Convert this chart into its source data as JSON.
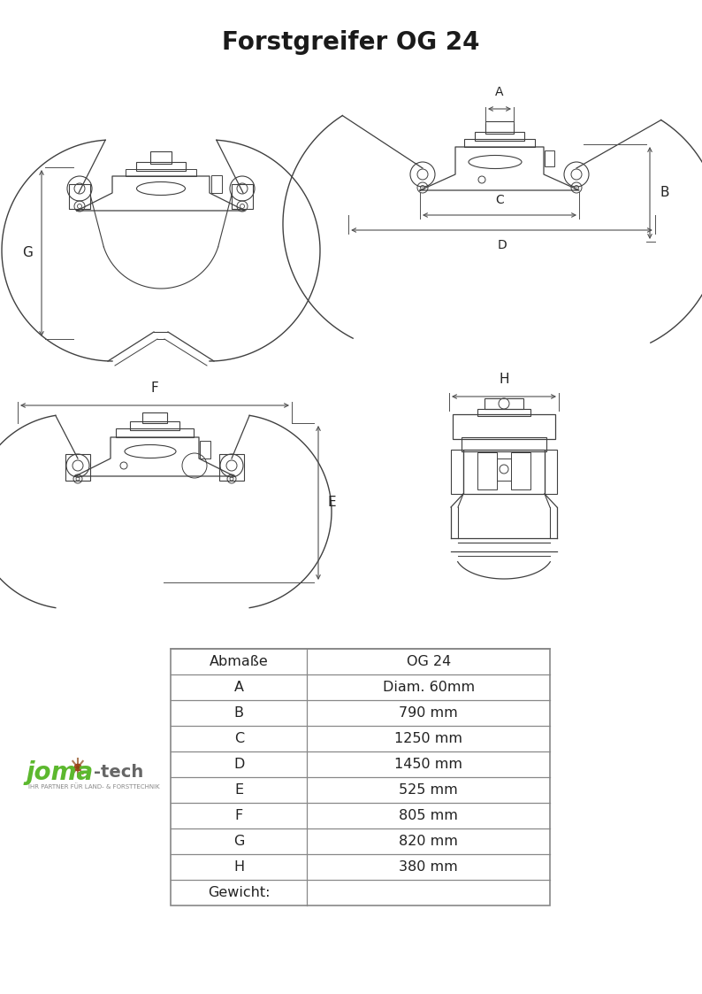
{
  "title": "Forstgreifer OG 24",
  "title_fontsize": 20,
  "title_fontweight": "bold",
  "table_headers": [
    "Abmaße",
    "OG 24"
  ],
  "table_rows": [
    [
      "A",
      "Diam. 60mm"
    ],
    [
      "B",
      "790 mm"
    ],
    [
      "C",
      "1250 mm"
    ],
    [
      "D",
      "1450 mm"
    ],
    [
      "E",
      "525 mm"
    ],
    [
      "F",
      "805 mm"
    ],
    [
      "G",
      "820 mm"
    ],
    [
      "H",
      "380 mm"
    ],
    [
      "Gewicht:",
      ""
    ]
  ],
  "bg_color": "#ffffff",
  "lc": "#404040",
  "dc": "#505050",
  "tlc": "#888888"
}
